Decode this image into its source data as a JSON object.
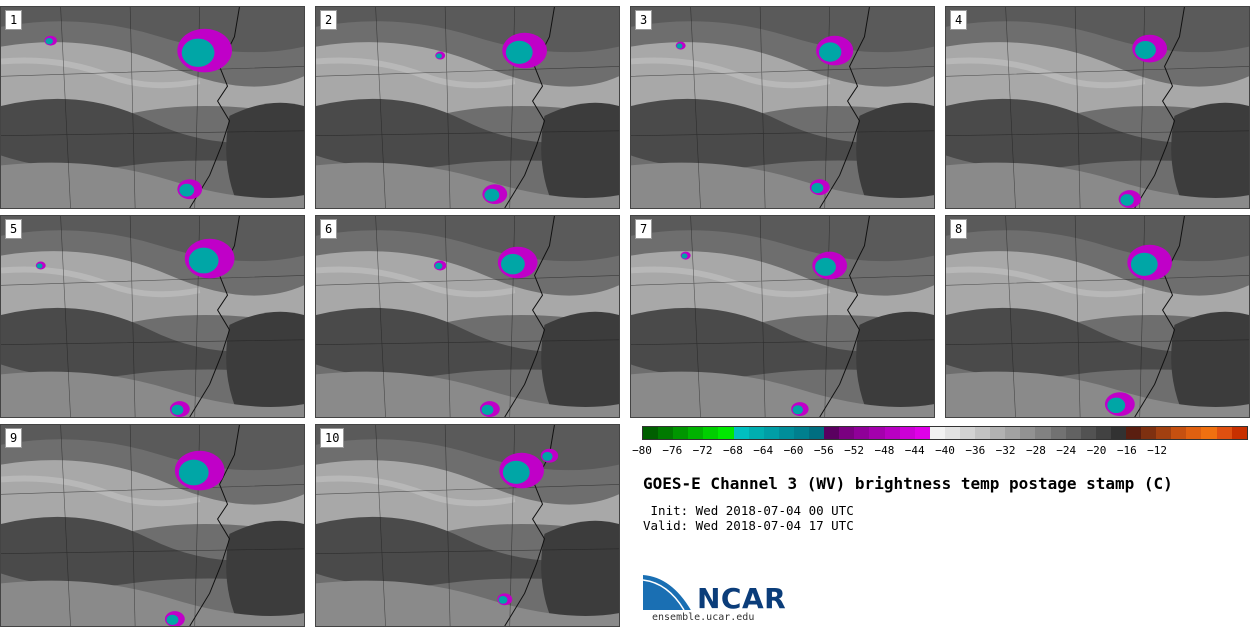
{
  "panels": [
    {
      "label": "1"
    },
    {
      "label": "2"
    },
    {
      "label": "3"
    },
    {
      "label": "4"
    },
    {
      "label": "5"
    },
    {
      "label": "6"
    },
    {
      "label": "7"
    },
    {
      "label": "8"
    },
    {
      "label": "9"
    },
    {
      "label": "10"
    }
  ],
  "colorbar": {
    "colors": [
      "#005f00",
      "#007a00",
      "#009600",
      "#00b200",
      "#00cf00",
      "#00e800",
      "#00c0c0",
      "#00aeb0",
      "#009ea6",
      "#008e9a",
      "#007f8e",
      "#006e80",
      "#5a0060",
      "#7a0080",
      "#8f0098",
      "#a400ad",
      "#b800c2",
      "#cc00d6",
      "#e000e8",
      "#f2f2f2",
      "#e2e2e2",
      "#d2d2d2",
      "#c2c2c2",
      "#b2b2b2",
      "#a2a2a2",
      "#929292",
      "#828282",
      "#727272",
      "#626262",
      "#525252",
      "#424242",
      "#323232",
      "#5a1e10",
      "#7e3010",
      "#a24010",
      "#c65010",
      "#e06010",
      "#f07010",
      "#e05010",
      "#c83000"
    ],
    "ticks": [
      "−80",
      "−76",
      "−72",
      "−68",
      "−64",
      "−60",
      "−56",
      "−52",
      "−48",
      "−44",
      "−40",
      "−36",
      "−32",
      "−28",
      "−24",
      "−20",
      "−16",
      "−12"
    ]
  },
  "title": "GOES-E Channel 3 (WV) brightness temp postage stamp (C)",
  "init": " Init: Wed 2018-07-04 00 UTC",
  "valid": "Valid: Wed 2018-07-04 17 UTC",
  "logo": {
    "text": "NCAR",
    "url": "ensemble.ucar.edu"
  }
}
